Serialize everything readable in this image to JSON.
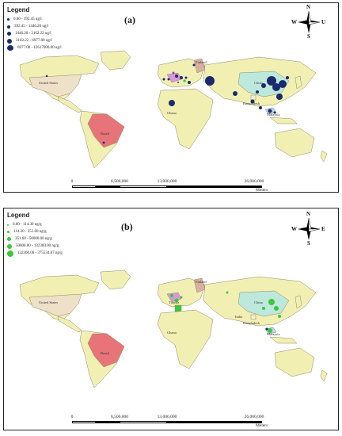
{
  "panels": [
    {
      "label": "(a)",
      "legend_title": "Legend",
      "legend_items": [
        "0.00 - 392.45  ug/l",
        "392.45 - 1446.20  ug/l",
        "1446.20 - 3162.22  ug/l",
        "3162.22 - 6977.00  ug/l",
        "6977.00 - 12617000.00  ug/l"
      ],
      "symbol_color": "#1a2a6c",
      "compass": {
        "n": "N",
        "s": "S",
        "e": "U",
        "w": "W"
      },
      "scale": {
        "ticks": [
          "0",
          "6,500,000",
          "13,000,000",
          "26,000,000"
        ],
        "units": "Meters"
      },
      "country_labels": [
        "United States",
        "Brazil",
        "Ghana",
        "China",
        "Finland",
        "Bangladesh",
        "Malaysia"
      ]
    },
    {
      "label": "(b)",
      "legend_title": "Legend",
      "legend_items": [
        "0.00 - 114.30  ng/g",
        "114.30 - 351.60  ng/g",
        "351.60 - 50000.00  ng/g",
        "50000.00 - 132360.00  ng/g",
        "132360.00 - 375534.87  ng/g"
      ],
      "symbol_color": "#3cc63c",
      "compass": {
        "n": "N",
        "s": "S",
        "e": "E",
        "w": "W"
      },
      "scale": {
        "ticks": [
          "0",
          "6,500,000",
          "13,000,000",
          "26,000,000"
        ],
        "units": "Meters"
      },
      "country_labels": [
        "United States",
        "Brazil",
        "Ghana",
        "China",
        "Finland",
        "Bangladesh",
        "Malaysia",
        "Tunisia",
        "India"
      ]
    }
  ],
  "colors": {
    "land": "#f2efb3",
    "border": "#8a8a6a",
    "usa": "#efe0c8",
    "brazil": "#e8747a",
    "china": "#bde8dc",
    "finland": "#d7b0a0",
    "bangladesh": "#f0f0d0",
    "malaysia": "#b6d8f0",
    "europe_highlight": "#d899d8"
  }
}
